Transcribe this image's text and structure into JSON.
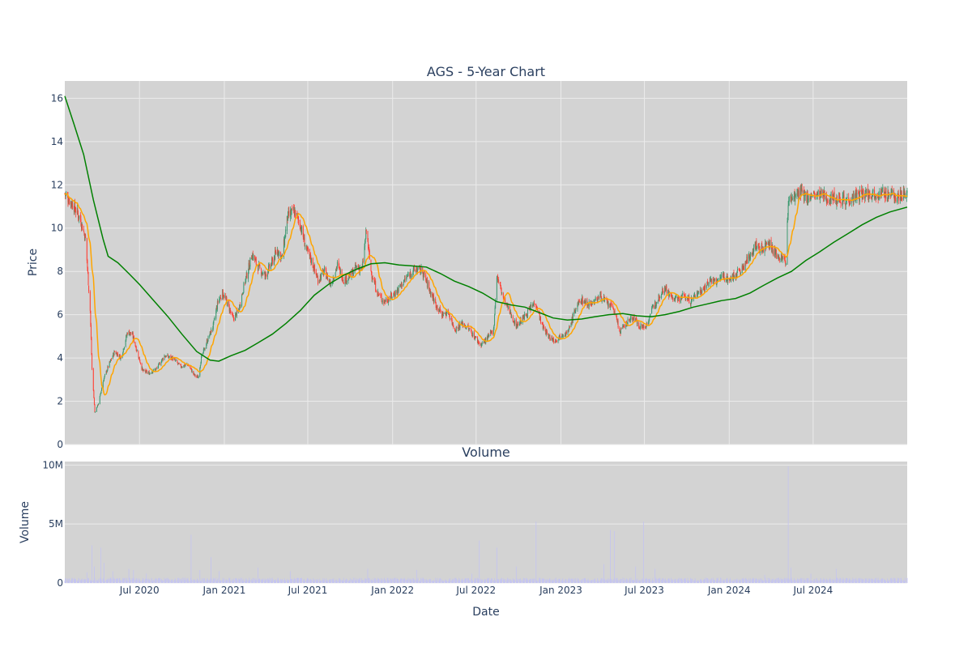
{
  "chart_data": {
    "type": "candlestick",
    "title": "AGS - 5-Year Chart",
    "xlabel": "Date",
    "ylabel": "Price",
    "ylim": [
      0,
      16.8
    ],
    "xlim": [
      "2020-01-21",
      "2025-01-21"
    ],
    "x_ticks": [
      {
        "date": "2020-07-01",
        "label": "Jul 2020"
      },
      {
        "date": "2021-01-01",
        "label": "Jan 2021"
      },
      {
        "date": "2021-07-01",
        "label": "Jul 2021"
      },
      {
        "date": "2022-01-01",
        "label": "Jan 2022"
      },
      {
        "date": "2022-07-01",
        "label": "Jul 2022"
      },
      {
        "date": "2023-01-01",
        "label": "Jan 2023"
      },
      {
        "date": "2023-07-01",
        "label": "Jul 2023"
      },
      {
        "date": "2024-01-01",
        "label": "Jan 2024"
      },
      {
        "date": "2024-07-01",
        "label": "Jul 2024"
      }
    ],
    "y_ticks": [
      0,
      2,
      4,
      6,
      8,
      10,
      12,
      14,
      16
    ],
    "grid": true,
    "colors": {
      "increasing": "#3d9970",
      "decreasing": "#ff4136",
      "ma_short": "#ffa500",
      "ma_long": "#008000",
      "volume": "#c4c4f0",
      "plot_bg": "#d3d3d3",
      "grid": "#ebebeb"
    },
    "close_series": [
      [
        "2020-01-21",
        11.6
      ],
      [
        "2020-02-10",
        11.0
      ],
      [
        "2020-02-24",
        10.4
      ],
      [
        "2020-03-06",
        9.5
      ],
      [
        "2020-03-16",
        6.2
      ],
      [
        "2020-03-20",
        3.5
      ],
      [
        "2020-03-26",
        1.5
      ],
      [
        "2020-04-03",
        1.9
      ],
      [
        "2020-04-14",
        3.0
      ],
      [
        "2020-04-24",
        3.6
      ],
      [
        "2020-05-08",
        4.3
      ],
      [
        "2020-05-22",
        4.0
      ],
      [
        "2020-06-05",
        5.2
      ],
      [
        "2020-06-15",
        5.1
      ],
      [
        "2020-06-26",
        4.3
      ],
      [
        "2020-07-08",
        3.4
      ],
      [
        "2020-07-22",
        3.3
      ],
      [
        "2020-08-07",
        3.5
      ],
      [
        "2020-08-24",
        4.1
      ],
      [
        "2020-09-10",
        4.0
      ],
      [
        "2020-09-28",
        3.6
      ],
      [
        "2020-10-14",
        3.7
      ],
      [
        "2020-10-28",
        3.2
      ],
      [
        "2020-11-05",
        3.1
      ],
      [
        "2020-11-12",
        4.0
      ],
      [
        "2020-11-25",
        4.8
      ],
      [
        "2020-12-08",
        5.5
      ],
      [
        "2020-12-18",
        6.6
      ],
      [
        "2020-12-28",
        7.0
      ],
      [
        "2021-01-08",
        6.5
      ],
      [
        "2021-01-20",
        5.8
      ],
      [
        "2021-02-01",
        6.2
      ],
      [
        "2021-02-12",
        7.3
      ],
      [
        "2021-02-22",
        8.1
      ],
      [
        "2021-03-02",
        8.8
      ],
      [
        "2021-03-15",
        8.2
      ],
      [
        "2021-03-30",
        7.8
      ],
      [
        "2021-04-12",
        8.3
      ],
      [
        "2021-04-26",
        9.0
      ],
      [
        "2021-05-06",
        8.6
      ],
      [
        "2021-05-18",
        10.5
      ],
      [
        "2021-06-01",
        10.8
      ],
      [
        "2021-06-14",
        10.2
      ],
      [
        "2021-06-28",
        9.0
      ],
      [
        "2021-07-09",
        8.5
      ],
      [
        "2021-07-23",
        7.6
      ],
      [
        "2021-08-06",
        8.0
      ],
      [
        "2021-08-20",
        7.4
      ],
      [
        "2021-09-03",
        8.3
      ],
      [
        "2021-09-17",
        7.6
      ],
      [
        "2021-10-01",
        7.8
      ],
      [
        "2021-10-15",
        8.2
      ],
      [
        "2021-10-27",
        8.1
      ],
      [
        "2021-11-05",
        9.9
      ],
      [
        "2021-11-15",
        8.0
      ],
      [
        "2021-11-29",
        7.0
      ],
      [
        "2021-12-13",
        6.6
      ],
      [
        "2021-12-27",
        6.8
      ],
      [
        "2022-01-10",
        7.1
      ],
      [
        "2022-01-24",
        7.5
      ],
      [
        "2022-02-07",
        7.9
      ],
      [
        "2022-02-21",
        8.1
      ],
      [
        "2022-03-07",
        8.0
      ],
      [
        "2022-03-21",
        7.2
      ],
      [
        "2022-04-04",
        6.5
      ],
      [
        "2022-04-18",
        6.0
      ],
      [
        "2022-05-02",
        6.1
      ],
      [
        "2022-05-16",
        5.3
      ],
      [
        "2022-05-31",
        5.6
      ],
      [
        "2022-06-13",
        5.4
      ],
      [
        "2022-06-27",
        5.0
      ],
      [
        "2022-07-11",
        4.6
      ],
      [
        "2022-07-25",
        4.9
      ],
      [
        "2022-08-08",
        5.3
      ],
      [
        "2022-08-15",
        7.8
      ],
      [
        "2022-08-29",
        6.8
      ],
      [
        "2022-09-12",
        6.1
      ],
      [
        "2022-09-26",
        5.5
      ],
      [
        "2022-10-10",
        5.8
      ],
      [
        "2022-10-24",
        6.2
      ],
      [
        "2022-11-07",
        6.6
      ],
      [
        "2022-11-21",
        5.5
      ],
      [
        "2022-12-05",
        5.0
      ],
      [
        "2022-12-19",
        4.8
      ],
      [
        "2023-01-03",
        5.1
      ],
      [
        "2023-01-17",
        5.2
      ],
      [
        "2023-01-31",
        6.2
      ],
      [
        "2023-02-14",
        6.7
      ],
      [
        "2023-02-28",
        6.5
      ],
      [
        "2023-03-14",
        6.6
      ],
      [
        "2023-03-28",
        6.9
      ],
      [
        "2023-04-11",
        6.5
      ],
      [
        "2023-04-25",
        6.3
      ],
      [
        "2023-05-09",
        5.2
      ],
      [
        "2023-05-23",
        5.6
      ],
      [
        "2023-06-06",
        5.9
      ],
      [
        "2023-06-20",
        5.5
      ],
      [
        "2023-07-03",
        5.4
      ],
      [
        "2023-07-17",
        6.2
      ],
      [
        "2023-07-31",
        6.8
      ],
      [
        "2023-08-14",
        7.3
      ],
      [
        "2023-08-28",
        6.8
      ],
      [
        "2023-09-11",
        6.7
      ],
      [
        "2023-09-25",
        6.9
      ],
      [
        "2023-10-09",
        6.6
      ],
      [
        "2023-10-23",
        7.0
      ],
      [
        "2023-11-06",
        7.2
      ],
      [
        "2023-11-20",
        7.6
      ],
      [
        "2023-12-04",
        7.5
      ],
      [
        "2023-12-18",
        7.8
      ],
      [
        "2024-01-02",
        7.6
      ],
      [
        "2024-01-16",
        7.9
      ],
      [
        "2024-01-30",
        8.1
      ],
      [
        "2024-02-13",
        8.7
      ],
      [
        "2024-02-27",
        9.2
      ],
      [
        "2024-03-12",
        9.0
      ],
      [
        "2024-03-26",
        9.4
      ],
      [
        "2024-04-09",
        8.8
      ],
      [
        "2024-04-23",
        8.6
      ],
      [
        "2024-05-03",
        8.5
      ],
      [
        "2024-05-08",
        11.2
      ],
      [
        "2024-05-22",
        11.5
      ],
      [
        "2024-06-05",
        11.6
      ],
      [
        "2024-06-19",
        11.4
      ],
      [
        "2024-07-03",
        11.5
      ],
      [
        "2024-07-17",
        11.5
      ],
      [
        "2024-07-31",
        11.4
      ],
      [
        "2024-08-14",
        11.4
      ],
      [
        "2024-08-28",
        11.4
      ],
      [
        "2024-09-11",
        11.3
      ],
      [
        "2024-09-25",
        11.4
      ],
      [
        "2024-10-09",
        11.5
      ],
      [
        "2024-10-23",
        11.6
      ],
      [
        "2024-11-06",
        11.6
      ],
      [
        "2024-11-20",
        11.6
      ],
      [
        "2024-12-04",
        11.6
      ],
      [
        "2024-12-18",
        11.5
      ],
      [
        "2025-01-02",
        11.5
      ],
      [
        "2025-01-21",
        11.6
      ]
    ],
    "ma_long": [
      [
        "2020-01-21",
        16.1
      ],
      [
        "2020-02-10",
        14.8
      ],
      [
        "2020-03-02",
        13.4
      ],
      [
        "2020-03-23",
        11.3
      ],
      [
        "2020-04-13",
        9.5
      ],
      [
        "2020-04-24",
        8.7
      ],
      [
        "2020-05-15",
        8.4
      ],
      [
        "2020-06-08",
        7.9
      ],
      [
        "2020-07-01",
        7.4
      ],
      [
        "2020-08-03",
        6.6
      ],
      [
        "2020-09-01",
        5.9
      ],
      [
        "2020-10-01",
        5.1
      ],
      [
        "2020-11-02",
        4.3
      ],
      [
        "2020-12-01",
        3.9
      ],
      [
        "2020-12-20",
        3.85
      ],
      [
        "2021-01-15",
        4.1
      ],
      [
        "2021-02-15",
        4.35
      ],
      [
        "2021-03-15",
        4.7
      ],
      [
        "2021-04-15",
        5.1
      ],
      [
        "2021-05-15",
        5.6
      ],
      [
        "2021-06-15",
        6.2
      ],
      [
        "2021-07-15",
        6.9
      ],
      [
        "2021-08-15",
        7.4
      ],
      [
        "2021-09-15",
        7.8
      ],
      [
        "2021-10-15",
        8.1
      ],
      [
        "2021-11-15",
        8.35
      ],
      [
        "2021-12-15",
        8.4
      ],
      [
        "2022-01-15",
        8.3
      ],
      [
        "2022-02-15",
        8.25
      ],
      [
        "2022-03-15",
        8.2
      ],
      [
        "2022-04-15",
        7.9
      ],
      [
        "2022-05-15",
        7.55
      ],
      [
        "2022-06-15",
        7.3
      ],
      [
        "2022-07-15",
        7.0
      ],
      [
        "2022-08-15",
        6.6
      ],
      [
        "2022-09-15",
        6.45
      ],
      [
        "2022-10-15",
        6.35
      ],
      [
        "2022-11-15",
        6.1
      ],
      [
        "2022-12-15",
        5.85
      ],
      [
        "2023-01-15",
        5.75
      ],
      [
        "2023-02-15",
        5.8
      ],
      [
        "2023-03-15",
        5.9
      ],
      [
        "2023-04-15",
        6.0
      ],
      [
        "2023-05-15",
        6.05
      ],
      [
        "2023-06-15",
        5.95
      ],
      [
        "2023-07-15",
        5.9
      ],
      [
        "2023-08-15",
        6.0
      ],
      [
        "2023-09-15",
        6.15
      ],
      [
        "2023-10-15",
        6.35
      ],
      [
        "2023-11-15",
        6.5
      ],
      [
        "2023-12-15",
        6.65
      ],
      [
        "2024-01-15",
        6.75
      ],
      [
        "2024-02-15",
        7.0
      ],
      [
        "2024-03-15",
        7.35
      ],
      [
        "2024-04-15",
        7.7
      ],
      [
        "2024-05-15",
        8.0
      ],
      [
        "2024-06-15",
        8.5
      ],
      [
        "2024-07-15",
        8.9
      ],
      [
        "2024-08-15",
        9.35
      ],
      [
        "2024-09-15",
        9.75
      ],
      [
        "2024-10-15",
        10.15
      ],
      [
        "2024-11-15",
        10.5
      ],
      [
        "2024-12-15",
        10.75
      ],
      [
        "2025-01-21",
        10.97
      ]
    ],
    "volume": {
      "title": "Volume",
      "ylabel": "Volume",
      "ylim": [
        0,
        10300000
      ],
      "y_ticks": [
        {
          "value": 0,
          "label": "0"
        },
        {
          "value": 5000000,
          "label": "5M"
        },
        {
          "value": 10000000,
          "label": "10M"
        }
      ],
      "baseline": 300000,
      "spikes": [
        [
          "2020-03-09",
          900000
        ],
        [
          "2020-03-20",
          3200000
        ],
        [
          "2020-03-25",
          1400000
        ],
        [
          "2020-04-08",
          3000000
        ],
        [
          "2020-04-15",
          1700000
        ],
        [
          "2020-05-04",
          1000000
        ],
        [
          "2020-06-08",
          1200000
        ],
        [
          "2020-06-18",
          1100000
        ],
        [
          "2020-07-16",
          800000
        ],
        [
          "2020-10-21",
          4100000
        ],
        [
          "2020-11-09",
          1100000
        ],
        [
          "2020-12-03",
          2200000
        ],
        [
          "2020-12-21",
          1000000
        ],
        [
          "2021-03-15",
          1300000
        ],
        [
          "2021-05-24",
          1000000
        ],
        [
          "2021-11-08",
          1200000
        ],
        [
          "2022-02-22",
          1100000
        ],
        [
          "2022-06-22",
          800000
        ],
        [
          "2022-07-08",
          3600000
        ],
        [
          "2022-08-15",
          3000000
        ],
        [
          "2022-09-26",
          1400000
        ],
        [
          "2022-11-08",
          5200000
        ],
        [
          "2023-04-04",
          1600000
        ],
        [
          "2023-04-18",
          4500000
        ],
        [
          "2023-04-27",
          4400000
        ],
        [
          "2023-06-12",
          1400000
        ],
        [
          "2023-06-29",
          5200000
        ],
        [
          "2023-07-24",
          1200000
        ],
        [
          "2024-03-18",
          700000
        ],
        [
          "2024-05-08",
          9900000
        ],
        [
          "2024-05-14",
          1300000
        ],
        [
          "2024-06-26",
          800000
        ],
        [
          "2024-08-20",
          1200000
        ]
      ]
    }
  }
}
